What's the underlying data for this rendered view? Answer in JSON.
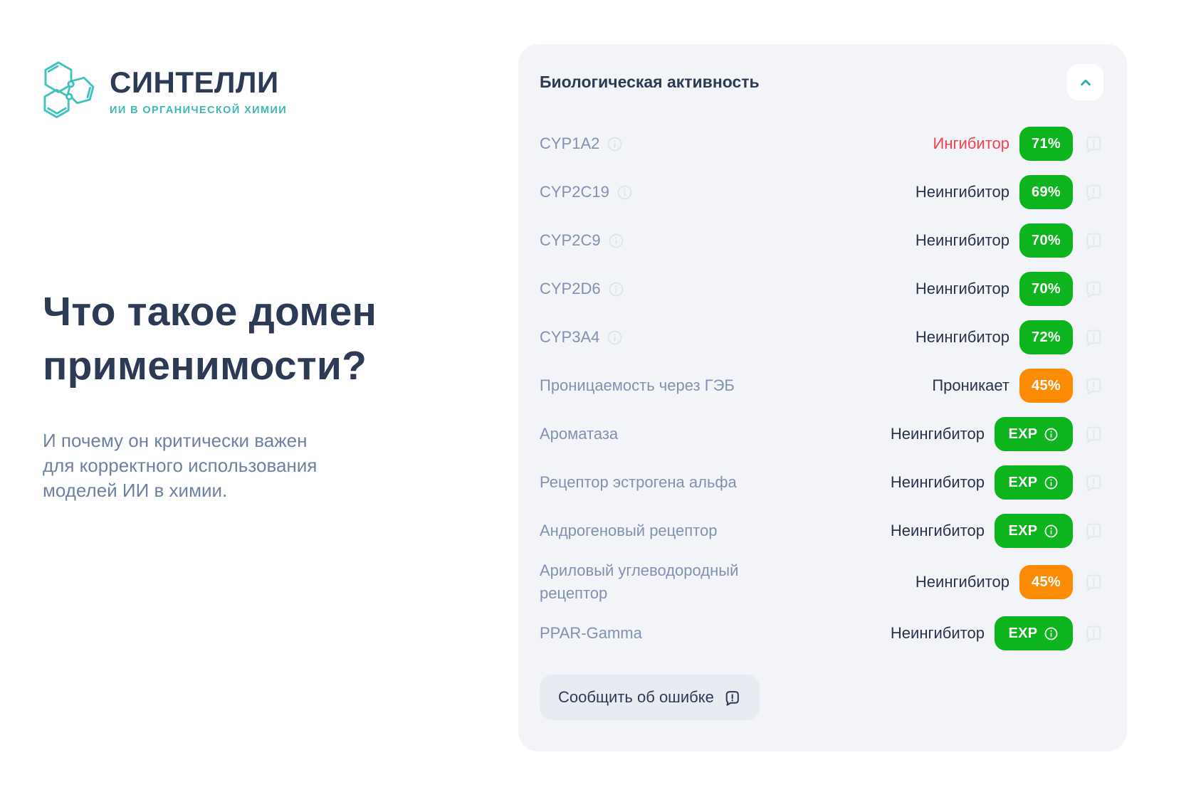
{
  "brand": {
    "name": "СИНТЕЛЛИ",
    "tagline": "ИИ В ОРГАНИЧЕСКОЙ ХИМИИ"
  },
  "hero": {
    "title_lines": [
      "Что такое домен",
      "применимости?"
    ],
    "subtitle_lines": [
      "И почему он критически важен",
      "для корректного использования",
      "моделей ИИ в химии."
    ]
  },
  "panel": {
    "title": "Биологическая активность",
    "report_button_label": "Сообщить об ошибке",
    "rows": [
      {
        "label": "CYP1A2",
        "info": true,
        "value": "Ингибитор",
        "alert": true,
        "badge": {
          "type": "percent",
          "text": "71%",
          "color": "green"
        }
      },
      {
        "label": "CYP2C19",
        "info": true,
        "value": "Неингибитор",
        "alert": false,
        "badge": {
          "type": "percent",
          "text": "69%",
          "color": "green"
        }
      },
      {
        "label": "CYP2C9",
        "info": true,
        "value": "Неингибитор",
        "alert": false,
        "badge": {
          "type": "percent",
          "text": "70%",
          "color": "green"
        }
      },
      {
        "label": "CYP2D6",
        "info": true,
        "value": "Неингибитор",
        "alert": false,
        "badge": {
          "type": "percent",
          "text": "70%",
          "color": "green"
        }
      },
      {
        "label": "CYP3A4",
        "info": true,
        "value": "Неингибитор",
        "alert": false,
        "badge": {
          "type": "percent",
          "text": "72%",
          "color": "green"
        }
      },
      {
        "label": "Проницаемость через ГЭБ",
        "info": false,
        "value": "Проникает",
        "alert": false,
        "badge": {
          "type": "percent",
          "text": "45%",
          "color": "orange"
        }
      },
      {
        "label": "Ароматаза",
        "info": false,
        "value": "Неингибитор",
        "alert": false,
        "badge": {
          "type": "exp",
          "text": "EXP",
          "color": "green"
        }
      },
      {
        "label": "Рецептор эстрогена альфа",
        "info": false,
        "value": "Неингибитор",
        "alert": false,
        "badge": {
          "type": "exp",
          "text": "EXP",
          "color": "green"
        }
      },
      {
        "label": "Андрогеновый рецептор",
        "info": false,
        "value": "Неингибитор",
        "alert": false,
        "badge": {
          "type": "exp",
          "text": "EXP",
          "color": "green"
        }
      },
      {
        "label": "Ариловый углеводородный рецептор",
        "info": false,
        "value": "Неингибитор",
        "alert": false,
        "badge": {
          "type": "percent",
          "text": "45%",
          "color": "orange"
        }
      },
      {
        "label": "PPAR-Gamma",
        "info": false,
        "value": "Неингибитор",
        "alert": false,
        "badge": {
          "type": "exp",
          "text": "EXP",
          "color": "green"
        }
      }
    ]
  },
  "colors": {
    "green": "#0db41e",
    "orange": "#fb8a05",
    "alert_red": "#f5414f",
    "navy": "#2d3a53",
    "value_text": "#27334a",
    "label_text": "#8291b2",
    "teal": "#3fc3bc",
    "card_bg": "#f2f4f8"
  }
}
